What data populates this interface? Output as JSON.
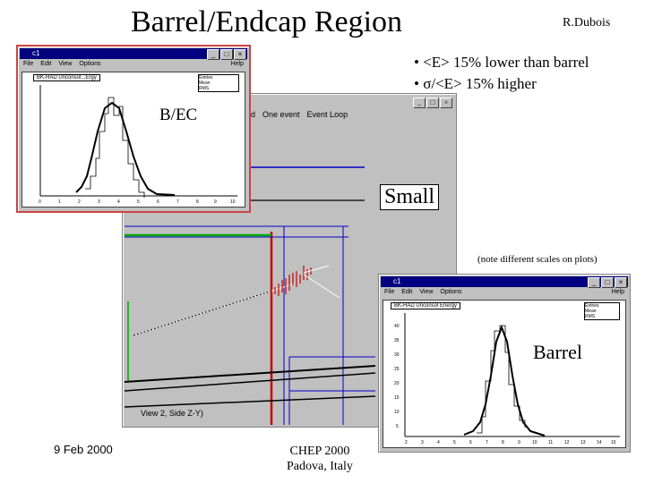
{
  "slide": {
    "title": "Barrel/Endcap Region",
    "author": "R.Dubois",
    "bullets": [
      "• <E> 15% lower than barrel",
      "• σ/<E> 15% higher"
    ],
    "note": "(note different scales on plots)",
    "footer_date": "9 Feb 2000",
    "footer_conf_line1": "CHEP 2000",
    "footer_conf_line2": "Padova, Italy"
  },
  "labels": {
    "bec": "B/EC",
    "small": "Small",
    "barrel": "Barrel"
  },
  "event_window": {
    "menu_items": [
      "eld",
      "One event",
      "Event Loop"
    ],
    "view_label": "View 2, Side Z-Y)",
    "controls": [
      "_",
      "□",
      "×"
    ]
  },
  "win1": {
    "title": "c1",
    "menu": [
      "File",
      "Edit",
      "View",
      "Options"
    ],
    "help": "Help",
    "plot_title": "BK-HAD Unconsol...Ergy",
    "stats": [
      "Entries",
      "Mean",
      "RMS"
    ],
    "x_ticks": [
      "0",
      "1",
      "2",
      "3",
      "4",
      "5",
      "6",
      "7",
      "8",
      "9",
      "10"
    ]
  },
  "win2": {
    "title": "c1",
    "menu": [
      "File",
      "Edit",
      "View",
      "Options"
    ],
    "help": "Help",
    "plot_title": "BK-HAD Unconsol Energy",
    "stats": [
      "Entries",
      "Mean",
      "RMS"
    ],
    "y_ticks": [
      "40",
      "35",
      "30",
      "25",
      "20",
      "15",
      "10",
      "5"
    ],
    "x_ticks": [
      "2",
      "3",
      "4",
      "5",
      "6",
      "7",
      "8",
      "9",
      "10",
      "11",
      "12",
      "13",
      "14",
      "15"
    ]
  },
  "colors": {
    "titlebar": "#000080",
    "grey": "#c0c0c0",
    "track_red": "#cc0000",
    "track_blue": "#0000cc",
    "green": "#00aa00"
  }
}
